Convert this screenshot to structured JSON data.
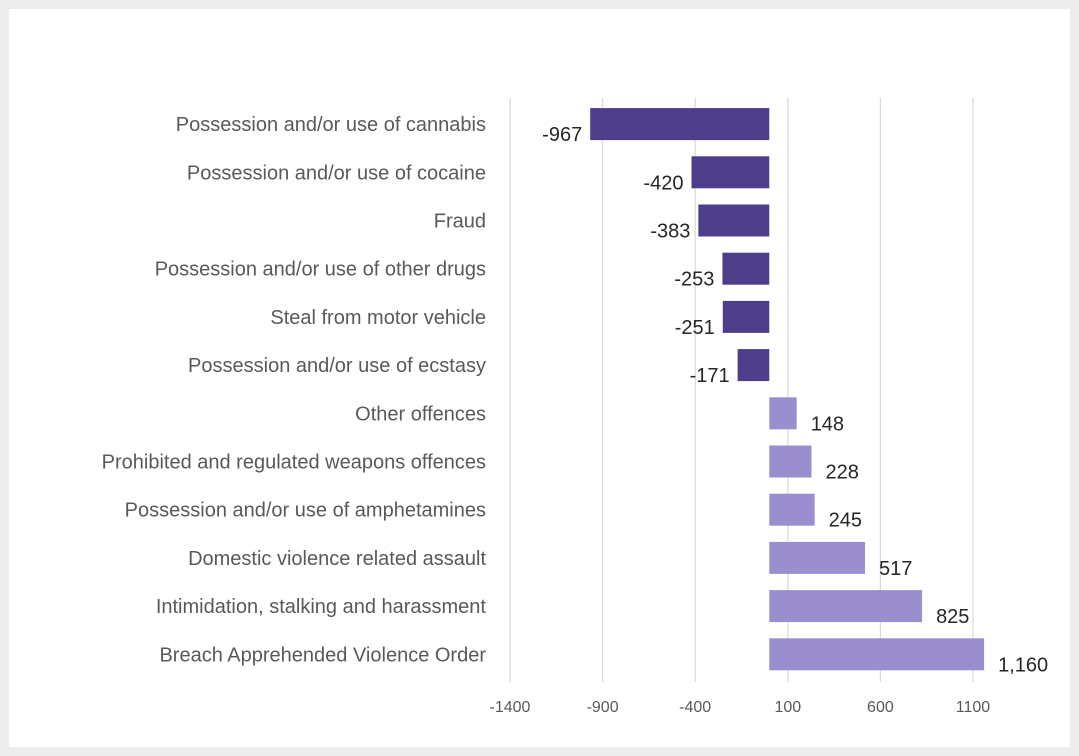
{
  "chart_data": {
    "type": "bar",
    "orientation": "horizontal",
    "title": "",
    "xlabel": "",
    "ylabel": "",
    "categories": [
      "Possession and/or use of cannabis",
      "Possession and/or use of cocaine",
      "Fraud",
      "Possession and/or use of other drugs",
      "Steal from motor vehicle",
      "Possession and/or use of ecstasy",
      "Other offences",
      "Prohibited and regulated weapons offences",
      "Possession and/or use of amphetamines",
      "Domestic violence related assault",
      "Intimidation, stalking and harassment",
      "Breach Apprehended Violence Order"
    ],
    "values": [
      -967,
      -420,
      -383,
      -253,
      -251,
      -171,
      148,
      228,
      245,
      517,
      825,
      1160
    ],
    "data_labels": [
      "-967",
      "-420",
      "-383",
      "-253",
      "-251",
      "-171",
      "148",
      "228",
      "245",
      "517",
      "825",
      "1,160"
    ],
    "xlim": [
      -1400,
      1100
    ],
    "xticks": [
      -1400,
      -900,
      -400,
      100,
      600,
      1100
    ],
    "xtick_labels": [
      "-1400",
      "-900",
      "-400",
      "100",
      "600",
      "1100"
    ],
    "grid": true,
    "legend": "none",
    "colors": {
      "negative": "#4e3d8a",
      "positive": "#9b8ecf",
      "gridline": "#d9d9d9"
    }
  }
}
